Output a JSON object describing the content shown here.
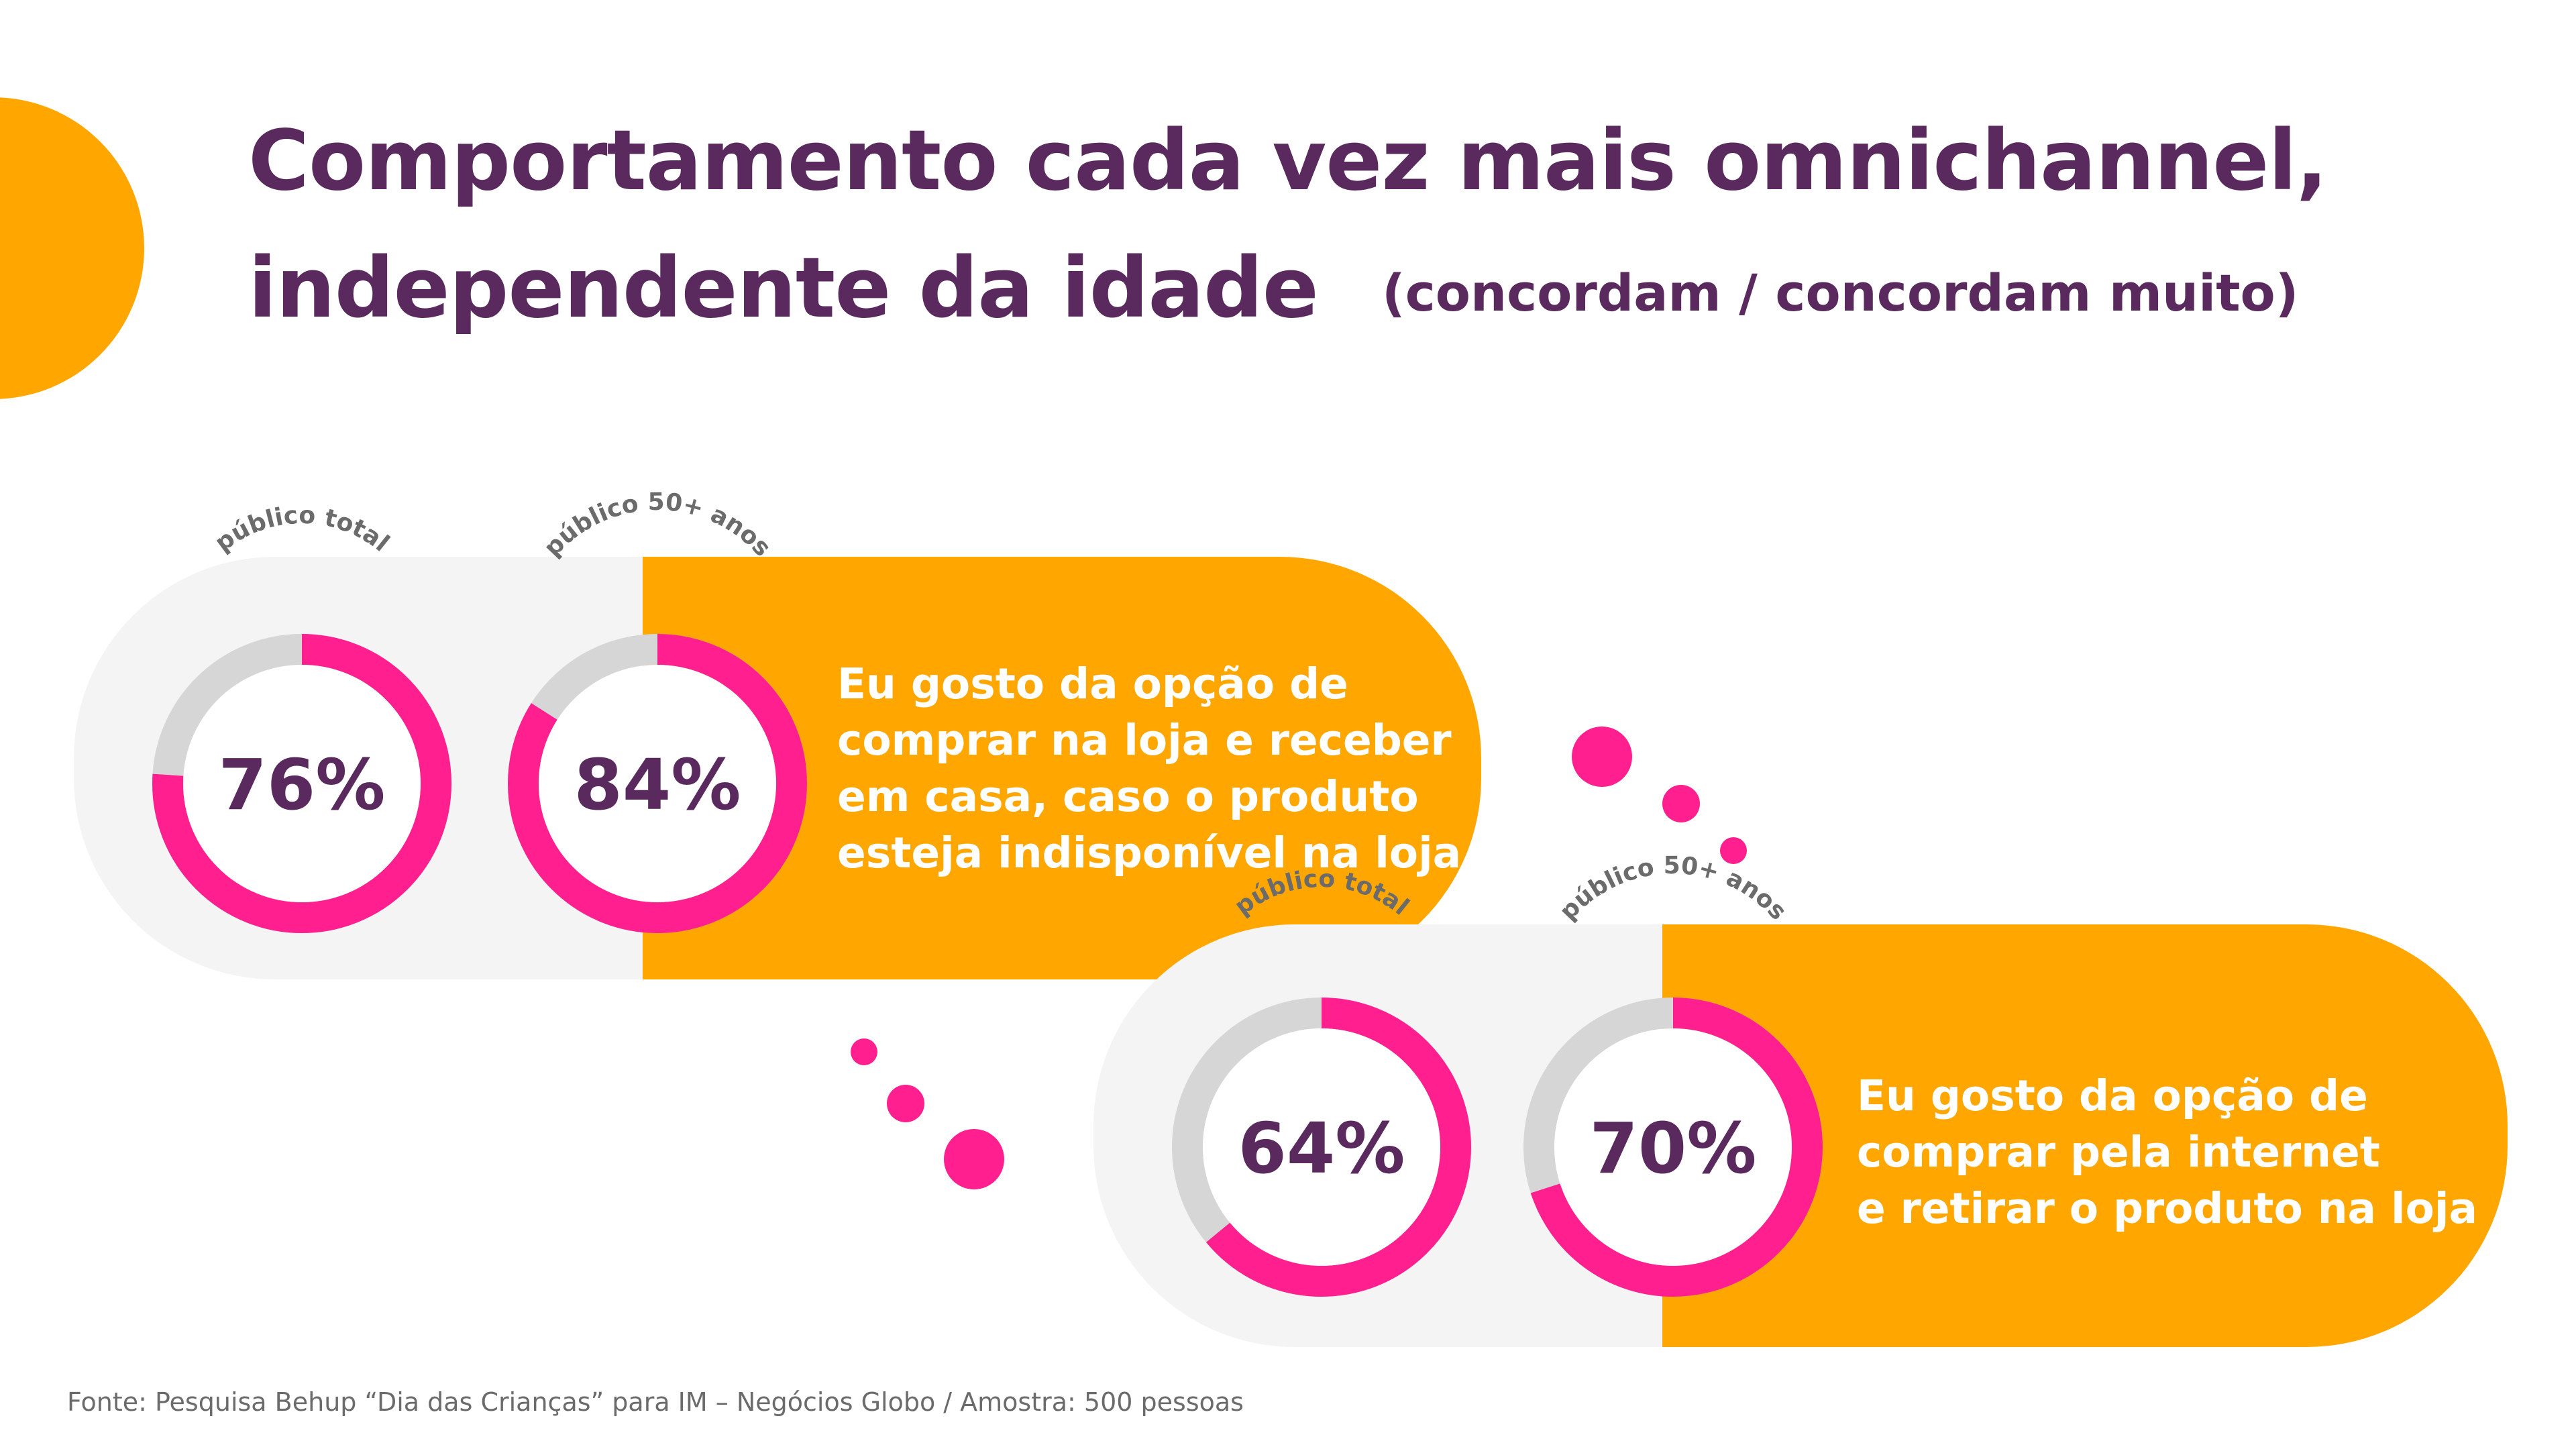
{
  "title": {
    "line1": "Comportamento cada vez mais omnichannel,",
    "line2": "independente da idade",
    "subtitle": "(concordam / concordam muito)"
  },
  "source": "Fonte: Pesquisa Behup “Dia das Crianças” para  IM – Negócios Globo / Amostra: 500 pessoas",
  "colors": {
    "accent_pink": "#ff1f8e",
    "accent_orange": "#ffa600",
    "ring_track": "#d6d6d6",
    "panel_gray": "#f4f4f4",
    "text_purple": "#5a2a5f",
    "label_gray": "#6b6b6b"
  },
  "chart_data": [
    {
      "type": "donut",
      "statement": [
        "Eu gosto da opção de",
        "comprar na loja e receber",
        "em casa, caso o produto",
        "esteja indisponível na loja"
      ],
      "series": [
        {
          "name": "público total",
          "value": 76,
          "label": "76%"
        },
        {
          "name": "público 50+ anos",
          "value": 84,
          "label": "84%"
        }
      ]
    },
    {
      "type": "donut",
      "statement": [
        "Eu gosto da opção de",
        "comprar pela internet",
        "e retirar o produto na loja"
      ],
      "series": [
        {
          "name": "público total",
          "value": 64,
          "label": "64%"
        },
        {
          "name": "público 50+ anos",
          "value": 70,
          "label": "70%"
        }
      ]
    }
  ]
}
